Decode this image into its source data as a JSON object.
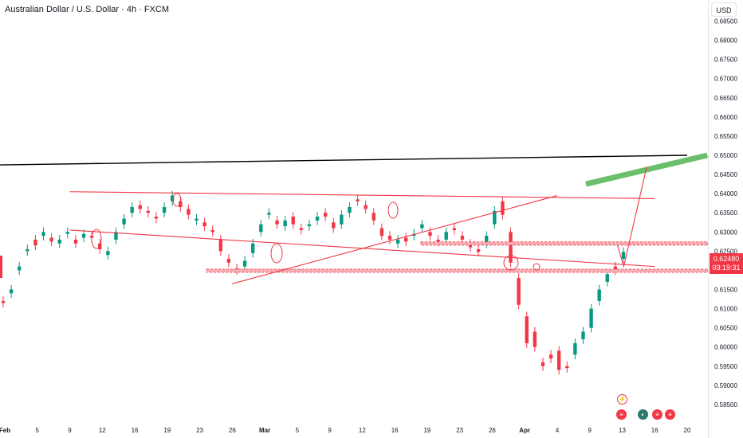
{
  "title": "Australian Dollar / U.S. Dollar · 4h · FXCM",
  "currency_label": "USD",
  "last_price": "0.62480",
  "countdown": "03:19:31",
  "colors": {
    "up": "#089981",
    "down": "#f23645",
    "trend_red": "#f23645",
    "trend_black": "#000000",
    "target_green": "#6bbf6b",
    "zone_fill": "#f7b1b7"
  },
  "icons": [
    "lightning-icon",
    "news-flag-icon",
    "dividend-icon",
    "earnings-icon",
    "earnings-icon-2"
  ],
  "chart_data": {
    "type": "candlestick",
    "symbol": "AUDUSD",
    "timeframe": "4h",
    "ylim": [
      0.5825,
      0.6905
    ],
    "y_ticks": [
      0.685,
      0.68,
      0.675,
      0.67,
      0.665,
      0.66,
      0.655,
      0.65,
      0.645,
      0.64,
      0.635,
      0.63,
      0.625,
      0.62,
      0.615,
      0.61,
      0.605,
      0.6,
      0.595,
      0.59,
      0.585
    ],
    "y_tick_labels": [
      "0.68500",
      "0.68000",
      "0.67500",
      "0.67000",
      "0.66500",
      "0.66000",
      "0.65500",
      "0.65000",
      "0.64500",
      "0.64000",
      "0.63500",
      "0.63000",
      "0.62500",
      "0.62000",
      "0.61500",
      "0.61000",
      "0.60500",
      "0.60000",
      "0.59500",
      "0.59000",
      "0.58500"
    ],
    "x_labels": [
      "Feb",
      "5",
      "9",
      "12",
      "16",
      "19",
      "23",
      "26",
      "Mar",
      "5",
      "9",
      "12",
      "16",
      "19",
      "23",
      "26",
      "Apr",
      "4",
      "9",
      "13",
      "16",
      "20"
    ],
    "x_label_bold": [
      "Feb",
      "Mar",
      "Apr"
    ],
    "price_path": [
      [
        0.612,
        0.6115
      ],
      [
        0.614,
        0.615
      ],
      [
        0.62,
        0.621
      ],
      [
        0.625,
        0.6255
      ],
      [
        0.628,
        0.6265
      ],
      [
        0.629,
        0.63
      ],
      [
        0.6285,
        0.6275
      ],
      [
        0.627,
        0.628
      ],
      [
        0.6295,
        0.63
      ],
      [
        0.628,
        0.627
      ],
      [
        0.6285,
        0.6295
      ],
      [
        0.629,
        0.6285
      ],
      [
        0.627,
        0.6255
      ],
      [
        0.624,
        0.625
      ],
      [
        0.628,
        0.63
      ],
      [
        0.632,
        0.6335
      ],
      [
        0.635,
        0.6365
      ],
      [
        0.637,
        0.636
      ],
      [
        0.6355,
        0.635
      ],
      [
        0.634,
        0.6335
      ],
      [
        0.635,
        0.6365
      ],
      [
        0.638,
        0.6395
      ],
      [
        0.638,
        0.6365
      ],
      [
        0.636,
        0.6345
      ],
      [
        0.633,
        0.6335
      ],
      [
        0.6325,
        0.6315
      ],
      [
        0.6305,
        0.63
      ],
      [
        0.628,
        0.625
      ],
      [
        0.623,
        0.622
      ],
      [
        0.6205,
        0.62
      ],
      [
        0.621,
        0.6225
      ],
      [
        0.6245,
        0.627
      ],
      [
        0.63,
        0.632
      ],
      [
        0.6345,
        0.635
      ],
      [
        0.633,
        0.632
      ],
      [
        0.6315,
        0.633
      ],
      [
        0.634,
        0.632
      ],
      [
        0.631,
        0.6305
      ],
      [
        0.6315,
        0.632
      ],
      [
        0.633,
        0.634
      ],
      [
        0.635,
        0.634
      ],
      [
        0.6325,
        0.631
      ],
      [
        0.632,
        0.6345
      ],
      [
        0.635,
        0.6365
      ],
      [
        0.6385,
        0.638
      ],
      [
        0.637,
        0.636
      ],
      [
        0.635,
        0.633
      ],
      [
        0.631,
        0.629
      ],
      [
        0.629,
        0.628
      ],
      [
        0.627,
        0.628
      ],
      [
        0.6285,
        0.6275
      ],
      [
        0.629,
        0.6295
      ],
      [
        0.631,
        0.632
      ],
      [
        0.63,
        0.629
      ],
      [
        0.628,
        0.6275
      ],
      [
        0.628,
        0.63
      ],
      [
        0.631,
        0.6305
      ],
      [
        0.629,
        0.628
      ],
      [
        0.627,
        0.626
      ],
      [
        0.6255,
        0.6248
      ],
      [
        0.627,
        0.629
      ],
      [
        0.632,
        0.6355
      ],
      [
        0.638,
        0.6345
      ],
      [
        0.63,
        0.622
      ],
      [
        0.618,
        0.611
      ],
      [
        0.608,
        0.601
      ],
      [
        0.604,
        0.6
      ],
      [
        0.596,
        0.595
      ],
      [
        0.598,
        0.597
      ],
      [
        0.599,
        0.594
      ],
      [
        0.595,
        0.5945
      ],
      [
        0.598,
        0.601
      ],
      [
        0.602,
        0.604
      ],
      [
        0.605,
        0.61
      ],
      [
        0.612,
        0.615
      ],
      [
        0.617,
        0.619
      ],
      [
        0.621,
        0.62
      ],
      [
        0.623,
        0.6248
      ]
    ],
    "trendlines": [
      {
        "name": "long-term-resistance",
        "color": "black",
        "points": [
          [
            "Feb-start",
            0.6475
          ],
          [
            "Apr-20",
            0.65
          ]
        ]
      },
      {
        "name": "upper-channel",
        "color": "red",
        "points": [
          [
            "Feb-9",
            0.6405
          ],
          [
            "Apr-16",
            0.6387
          ]
        ]
      },
      {
        "name": "lower-channel",
        "color": "red",
        "points": [
          [
            "Feb-9",
            0.6305
          ],
          [
            "Apr-16",
            0.621
          ]
        ]
      },
      {
        "name": "rising-support",
        "color": "red",
        "points": [
          [
            "Feb-26",
            0.6165
          ],
          [
            "Apr-4",
            0.6395
          ]
        ]
      }
    ],
    "zones": [
      {
        "name": "support-zone",
        "low": 0.6195,
        "high": 0.6203
      },
      {
        "name": "mid-zone",
        "low": 0.6266,
        "high": 0.6274
      }
    ],
    "projection": {
      "color": "red",
      "path": [
        [
          "Apr-13",
          0.621
        ],
        [
          "Apr-16",
          0.647
        ]
      ]
    },
    "target_zone": {
      "color": "green",
      "from": [
        [
          "Apr-4",
          0.6425
        ],
        [
          "Apr-16",
          0.6465
        ]
      ]
    }
  }
}
